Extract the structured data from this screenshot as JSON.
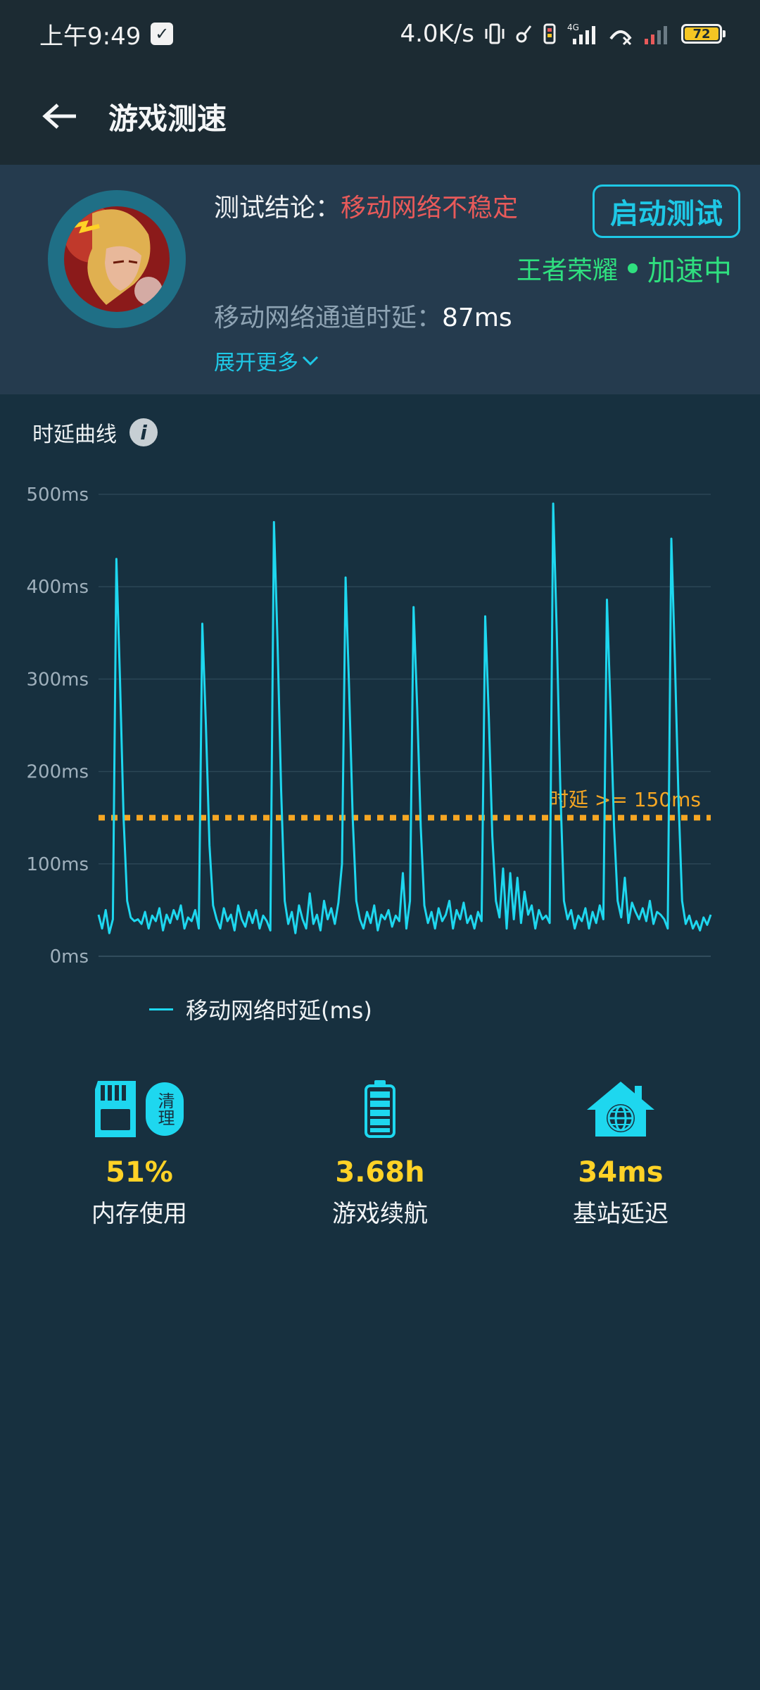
{
  "status_bar": {
    "time": "上午9:49",
    "net_speed": "4.0K/s",
    "network_type": "4G",
    "battery_level": "72"
  },
  "header": {
    "title": "游戏测速"
  },
  "summary": {
    "conclusion_label": "测试结论：",
    "conclusion_value": "移动网络不稳定",
    "start_button": "启动测试",
    "game_name": "王者荣耀",
    "accel_status": "加速中",
    "latency_label": "移动网络通道时延：",
    "latency_value": "87ms",
    "expand_label": "展开更多"
  },
  "chart_section": {
    "title": "时延曲线"
  },
  "chart_data": {
    "type": "line",
    "ylim": [
      0,
      500
    ],
    "yticks": [
      "0ms",
      "100ms",
      "200ms",
      "300ms",
      "400ms",
      "500ms"
    ],
    "ytick_values": [
      0,
      100,
      200,
      300,
      400,
      500
    ],
    "grid": true,
    "threshold": {
      "value": 150,
      "label": "时延 >= 150ms"
    },
    "series": [
      {
        "name": "移动网络时延(ms)",
        "color": "#1ed7ef",
        "values": [
          45,
          30,
          50,
          25,
          40,
          430,
          300,
          150,
          60,
          42,
          38,
          40,
          35,
          48,
          30,
          44,
          38,
          52,
          28,
          45,
          36,
          50,
          40,
          55,
          30,
          42,
          38,
          50,
          30,
          360,
          250,
          120,
          55,
          40,
          30,
          52,
          38,
          45,
          28,
          55,
          40,
          32,
          48,
          36,
          50,
          30,
          44,
          38,
          28,
          470,
          340,
          180,
          60,
          35,
          48,
          25,
          55,
          40,
          30,
          68,
          35,
          45,
          28,
          60,
          40,
          52,
          35,
          58,
          100,
          410,
          290,
          150,
          60,
          40,
          30,
          48,
          36,
          55,
          28,
          45,
          40,
          50,
          32,
          44,
          38,
          90,
          30,
          60,
          378,
          270,
          140,
          55,
          36,
          48,
          30,
          52,
          38,
          45,
          60,
          30,
          50,
          40,
          58,
          36,
          44,
          30,
          48,
          38,
          368,
          260,
          130,
          60,
          42,
          95,
          30,
          90,
          40,
          85,
          36,
          70,
          45,
          55,
          30,
          50,
          40,
          44,
          36,
          490,
          350,
          180,
          60,
          40,
          50,
          30,
          44,
          38,
          52,
          30,
          48,
          36,
          55,
          40,
          386,
          270,
          140,
          60,
          42,
          85,
          36,
          58,
          48,
          40,
          52,
          38,
          60,
          35,
          48,
          45,
          40,
          30,
          452,
          320,
          170,
          60,
          35,
          44,
          30,
          38,
          28,
          42,
          34,
          45
        ]
      }
    ]
  },
  "stats": [
    {
      "value": "51%",
      "label": "内存使用",
      "icon": "sd-card-icon",
      "action": "清理"
    },
    {
      "value": "3.68h",
      "label": "游戏续航",
      "icon": "battery-icon"
    },
    {
      "value": "34ms",
      "label": "基站延迟",
      "icon": "home-globe-icon"
    }
  ],
  "colors": {
    "background": "#17303f",
    "card": "#253b4e",
    "accent": "#1ec8e6",
    "warning": "#e85a5a",
    "success": "#2fe07f",
    "threshold": "#f5a623",
    "stat_value": "#ffd226"
  }
}
